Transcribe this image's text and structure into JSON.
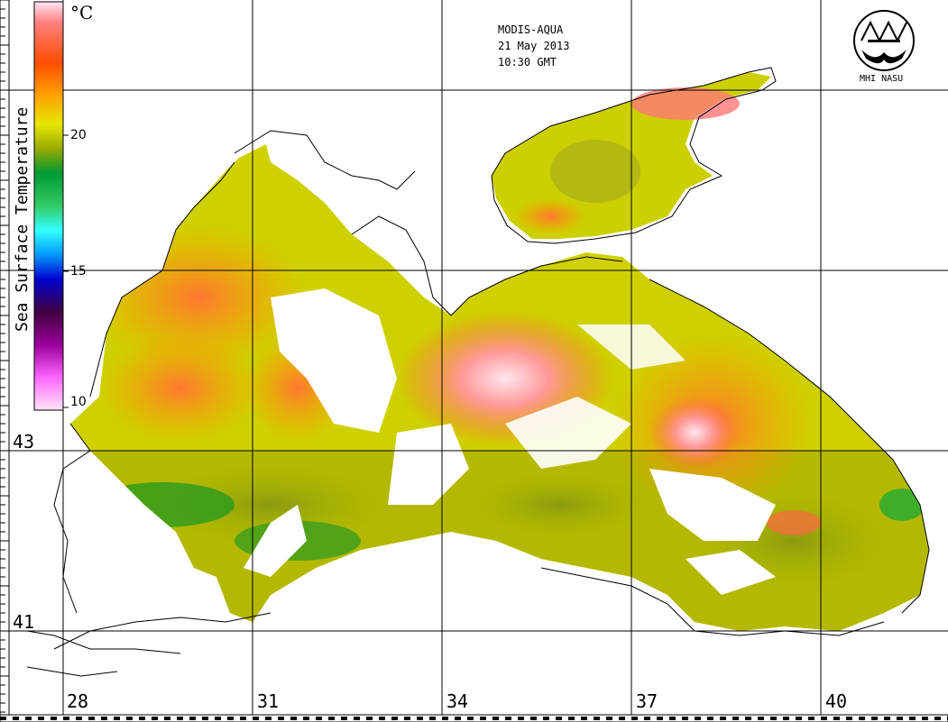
{
  "header": {
    "satellite": "MODIS-AQUA",
    "date": "21 May 2013",
    "time": "10:30 GMT"
  },
  "logo": {
    "text": "MHI NASU"
  },
  "colorbar": {
    "title": "Sea Surface Temperature",
    "unit": "°C",
    "ticks": [
      "20",
      "15",
      "10"
    ],
    "range": [
      10,
      25
    ],
    "colors": [
      "#ffe6f5",
      "#ff66ff",
      "#990099",
      "#400040",
      "#0000cc",
      "#0099ff",
      "#33ffff",
      "#33cc66",
      "#009900",
      "#99aa00",
      "#dddd00",
      "#ff9900",
      "#ff3300",
      "#ff6666",
      "#ffcccc"
    ]
  },
  "grid": {
    "longitudes": [
      "28",
      "31",
      "34",
      "37",
      "40"
    ],
    "latitudes": [
      "43",
      "41"
    ]
  }
}
